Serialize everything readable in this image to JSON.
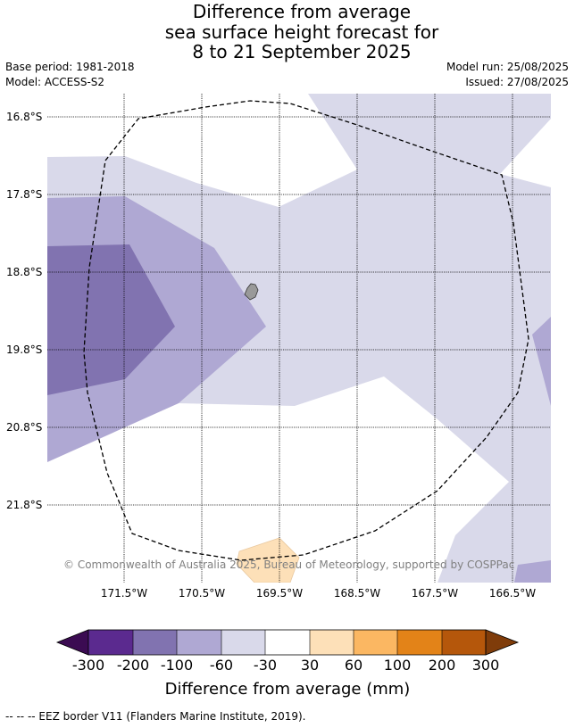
{
  "title": {
    "line1": "Difference from average",
    "line2": "sea surface height forecast for",
    "line3": "8 to 21 September 2025"
  },
  "meta": {
    "base_period": "Base period: 1981-2018",
    "model": "Model: ACCESS-S2",
    "model_run": "Model run: 25/08/2025",
    "issued": "Issued: 27/08/2025"
  },
  "map": {
    "lat_labels": [
      "16.8°S",
      "17.8°S",
      "18.8°S",
      "19.8°S",
      "20.8°S",
      "21.8°S"
    ],
    "lon_labels": [
      "171.5°W",
      "170.5°W",
      "169.5°W",
      "168.5°W",
      "167.5°W",
      "166.5°W"
    ],
    "copyright": "© Commonwealth of Australia 2025, Bureau of Meteorology, supported by COSPPac"
  },
  "colorbar": {
    "labels": [
      "-300",
      "-200",
      "-100",
      "-60",
      "-30",
      "30",
      "60",
      "100",
      "200",
      "300"
    ],
    "title": "Difference from average (mm)",
    "colors": {
      "under": "#3b0b52",
      "bins": [
        "#5b2a8f",
        "#8173b0",
        "#afa8d3",
        "#d9d9ea",
        "#ffffff",
        "#fde0b8",
        "#fbb762",
        "#e38318",
        "#b5570b"
      ],
      "over": "#7f3c0a"
    }
  },
  "footnote": "-- -- -- EEZ border V11 (Flanders Marine Institute, 2019)."
}
